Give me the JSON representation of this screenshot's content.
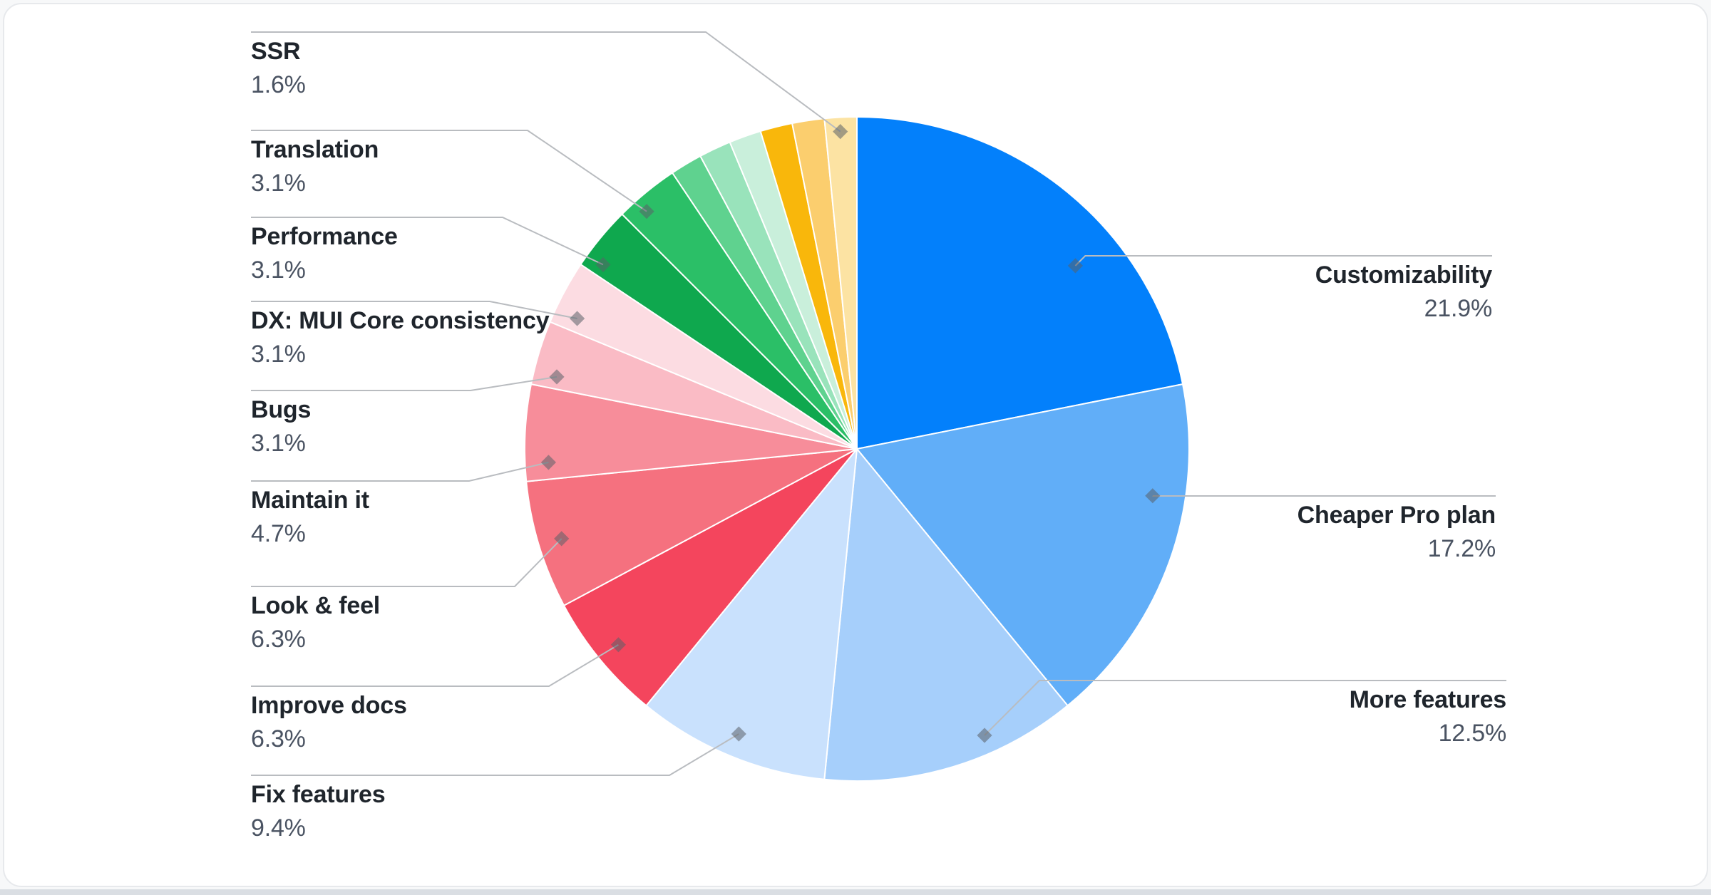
{
  "chart_data": {
    "type": "pie",
    "title": "",
    "legend": "none",
    "direction": "clockwise",
    "start_angle_deg": 0,
    "total_votes": 64,
    "slices": [
      {
        "label": "Customizability",
        "pct": "21.9%",
        "pct_num": 21.9,
        "value": 14,
        "color": "#0380FB",
        "labeled": true,
        "label_side": "right"
      },
      {
        "label": "Cheaper Pro plan",
        "pct": "17.2%",
        "pct_num": 17.2,
        "value": 11,
        "color": "#61AEF8",
        "labeled": true,
        "label_side": "right"
      },
      {
        "label": "More features",
        "pct": "12.5%",
        "pct_num": 12.5,
        "value": 8,
        "color": "#A6CFFB",
        "labeled": true,
        "label_side": "right"
      },
      {
        "label": "Fix features",
        "pct": "9.4%",
        "pct_num": 9.4,
        "value": 6,
        "color": "#C9E1FD",
        "labeled": true,
        "label_side": "left"
      },
      {
        "label": "Improve docs",
        "pct": "6.3%",
        "pct_num": 6.3,
        "value": 4,
        "color": "#F4455D",
        "labeled": true,
        "label_side": "left"
      },
      {
        "label": "Look & feel",
        "pct": "6.3%",
        "pct_num": 6.3,
        "value": 4,
        "color": "#F5717F",
        "labeled": true,
        "label_side": "left"
      },
      {
        "label": "Maintain it",
        "pct": "4.7%",
        "pct_num": 4.7,
        "value": 3,
        "color": "#F78D9A",
        "labeled": true,
        "label_side": "left"
      },
      {
        "label": "Bugs",
        "pct": "3.1%",
        "pct_num": 3.1,
        "value": 2,
        "color": "#FABBC5",
        "labeled": true,
        "label_side": "left"
      },
      {
        "label": "DX: MUI Core consistency",
        "pct": "3.1%",
        "pct_num": 3.1,
        "value": 2,
        "color": "#FCDCE2",
        "labeled": true,
        "label_side": "left"
      },
      {
        "label": "Performance",
        "pct": "3.1%",
        "pct_num": 3.1,
        "value": 2,
        "color": "#0FA84E",
        "labeled": true,
        "label_side": "left"
      },
      {
        "label": "Translation",
        "pct": "3.1%",
        "pct_num": 3.1,
        "value": 2,
        "color": "#2BBF67",
        "labeled": true,
        "label_side": "left"
      },
      {
        "label": "",
        "pct": "",
        "pct_num": 1.6,
        "value": 1,
        "color": "#5FD28F",
        "labeled": false,
        "label_side": "none"
      },
      {
        "label": "",
        "pct": "",
        "pct_num": 1.6,
        "value": 1,
        "color": "#99E3BB",
        "labeled": false,
        "label_side": "none"
      },
      {
        "label": "",
        "pct": "",
        "pct_num": 1.6,
        "value": 1,
        "color": "#C9EFDB",
        "labeled": false,
        "label_side": "none"
      },
      {
        "label": "",
        "pct": "",
        "pct_num": 1.6,
        "value": 1,
        "color": "#F9B70B",
        "labeled": false,
        "label_side": "none"
      },
      {
        "label": "",
        "pct": "",
        "pct_num": 1.6,
        "value": 1,
        "color": "#FBCE6E",
        "labeled": false,
        "label_side": "none"
      },
      {
        "label": "SSR",
        "pct": "1.6%",
        "pct_num": 1.6,
        "value": 1,
        "color": "#FCE3A3",
        "labeled": true,
        "label_side": "left"
      }
    ]
  },
  "colors": {
    "label_title": "#1F252C",
    "label_pct": "#4A5362",
    "leader_line": "#B9BCC0",
    "leader_marker": "rgba(90,97,104,0.55)",
    "slice_separator": "#FFFFFF",
    "card_background": "#FFFFFF",
    "card_border": "#E7E9EC",
    "bottom_strip": "#DADEE3"
  }
}
